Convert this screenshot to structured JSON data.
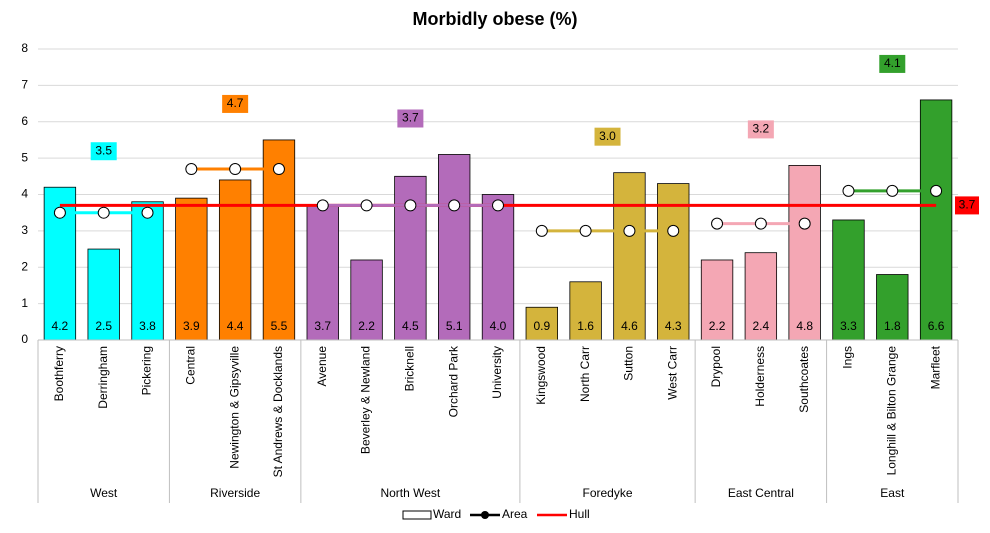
{
  "chart_data": {
    "type": "bar",
    "title": "Morbidly obese (%)",
    "ylim": [
      0,
      8
    ],
    "yticks": [
      0,
      1,
      2,
      3,
      4,
      5,
      6,
      7,
      8
    ],
    "groups": [
      {
        "name": "West",
        "color": "#00ffff",
        "wards": [
          "Boothferry",
          "Derringham",
          "Pickering"
        ],
        "values": [
          4.2,
          2.5,
          3.8
        ],
        "value_labels": [
          "4.2",
          "2.5",
          "3.8"
        ],
        "area_value": 3.5
      },
      {
        "name": "Riverside",
        "color": "#ff8000",
        "wards": [
          "Central",
          "Newington & Gipsyville",
          "St Andrews & Docklands"
        ],
        "values": [
          3.9,
          4.4,
          5.5
        ],
        "value_labels": [
          "3.9",
          "4.4",
          "5.5"
        ],
        "area_value": 4.7
      },
      {
        "name": "North West",
        "color": "#b36bba",
        "wards": [
          "Avenue",
          "Beverley & Newland",
          "Bricknell",
          "Orchard Park",
          "University"
        ],
        "values": [
          3.7,
          2.2,
          4.5,
          5.1,
          4.0
        ],
        "value_labels": [
          "3.7",
          "2.2",
          "4.5",
          "5.1",
          "4.0"
        ],
        "area_value": 3.7
      },
      {
        "name": "Foredyke",
        "color": "#d4b43c",
        "wards": [
          "Kingswood",
          "North Carr",
          "Sutton",
          "West Carr"
        ],
        "values": [
          0.9,
          1.6,
          4.6,
          4.3
        ],
        "value_labels": [
          "0.9",
          "1.6",
          "4.6",
          "4.3"
        ],
        "area_value": 3.0,
        "area_label": "3.0"
      },
      {
        "name": "East Central",
        "color": "#f4a7b4",
        "wards": [
          "Drypool",
          "Holderness",
          "Southcoates"
        ],
        "values": [
          2.2,
          2.4,
          4.8
        ],
        "value_labels": [
          "2.2",
          "2.4",
          "4.8"
        ],
        "area_value": 3.2
      },
      {
        "name": "East",
        "color": "#33a02c",
        "wards": [
          "Ings",
          "Longhill & Bilton Grange",
          "Marfleet"
        ],
        "values": [
          3.3,
          1.8,
          6.6
        ],
        "value_labels": [
          "3.3",
          "1.8",
          "6.6"
        ],
        "area_value": 4.1
      }
    ],
    "hull": {
      "name": "Hull",
      "value": 3.7,
      "color": "#ff0000"
    },
    "legend": {
      "ward": "Ward",
      "area": "Area"
    }
  }
}
